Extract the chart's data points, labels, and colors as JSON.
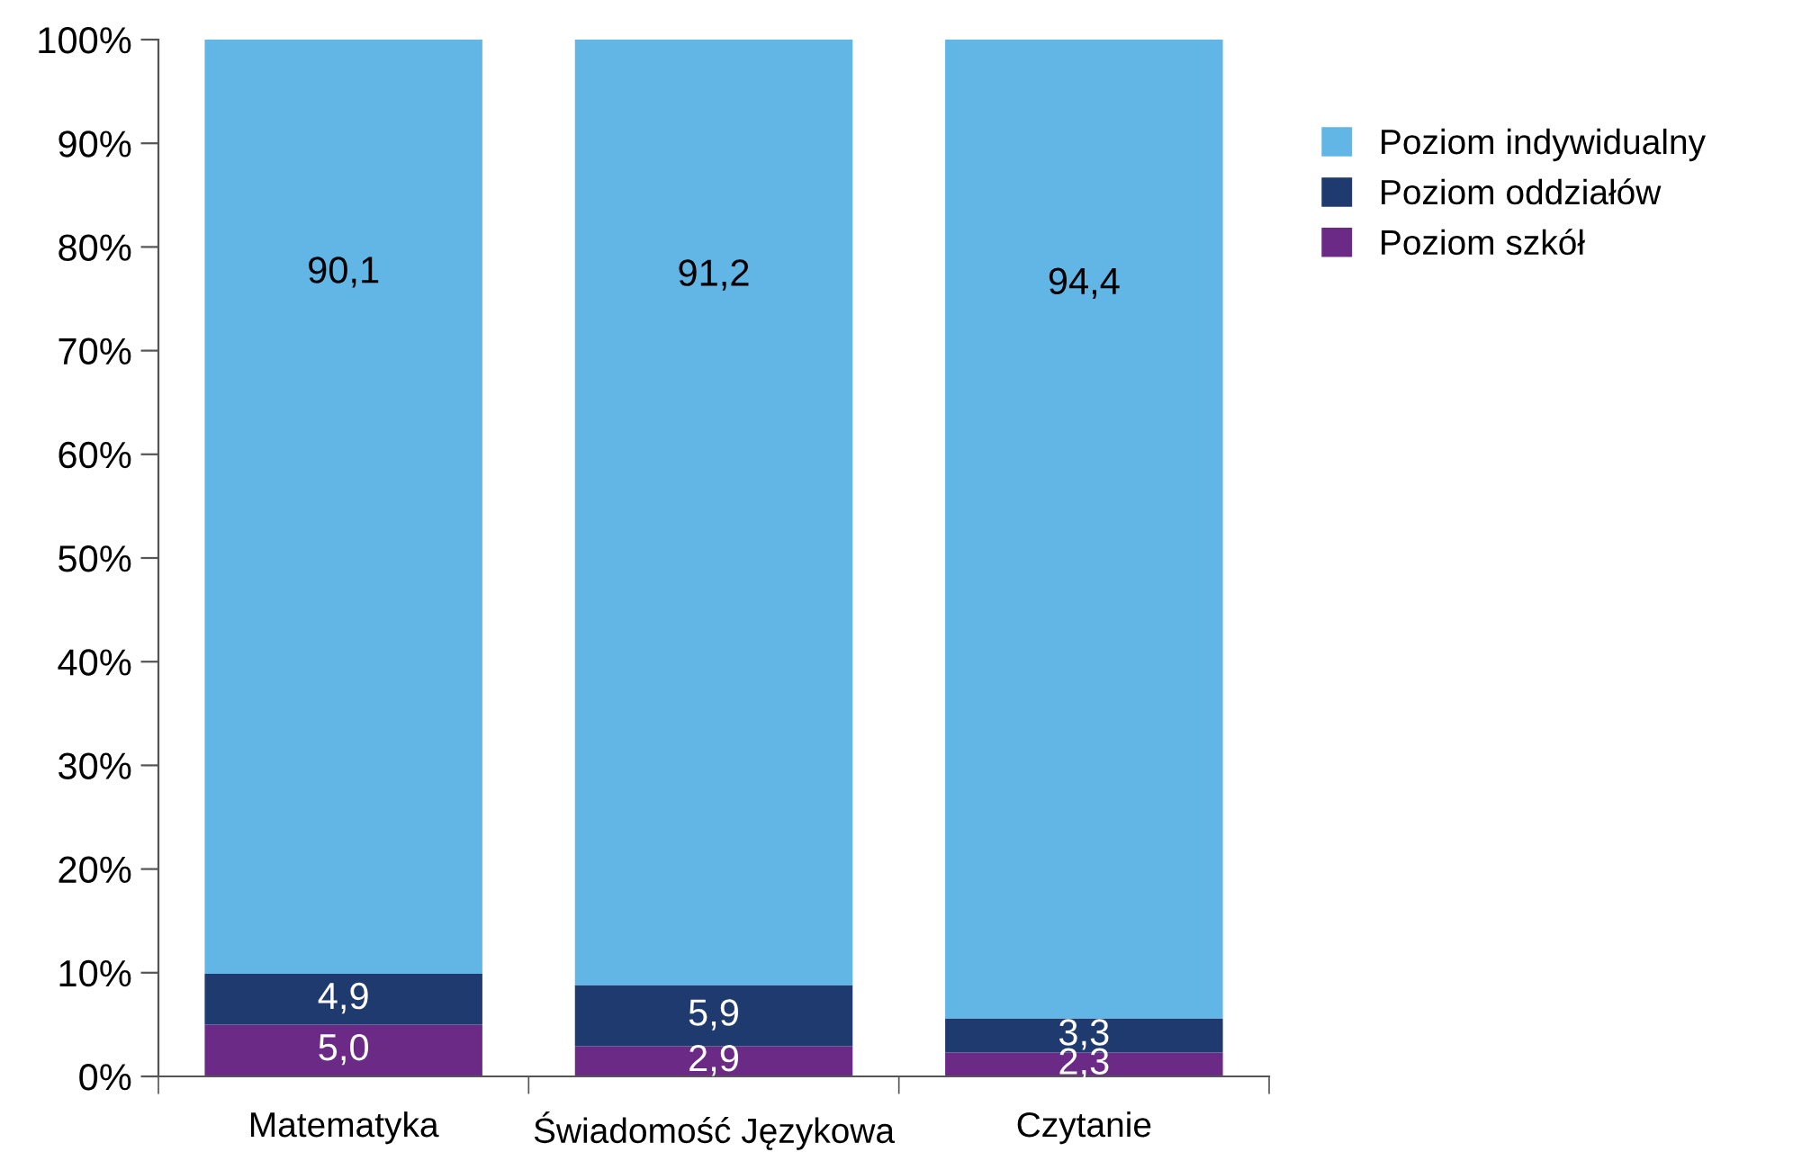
{
  "chart_data": {
    "type": "bar",
    "stacked": true,
    "categories": [
      "Matematyka",
      "Świadomość Językowa",
      "Czytanie"
    ],
    "series": [
      {
        "name": "Poziom szkół",
        "color": "#6b2a86",
        "values": [
          5.0,
          2.9,
          2.3
        ],
        "value_labels": [
          "5,0",
          "2,9",
          "2,3"
        ]
      },
      {
        "name": "Poziom oddziałów",
        "color": "#1f3a6e",
        "values": [
          4.9,
          5.9,
          3.3
        ],
        "value_labels": [
          "4,9",
          "5,9",
          "3,3"
        ]
      },
      {
        "name": "Poziom indywidualny",
        "color": "#62b6e6",
        "values": [
          90.1,
          91.2,
          94.4
        ],
        "value_labels": [
          "90,1",
          "91,2",
          "94,4"
        ]
      }
    ],
    "ylim": [
      0,
      100
    ],
    "yticks": [
      {
        "value": 0,
        "label": "0%"
      },
      {
        "value": 10,
        "label": "10%"
      },
      {
        "value": 20,
        "label": "20%"
      },
      {
        "value": 30,
        "label": "30%"
      },
      {
        "value": 40,
        "label": "40%"
      },
      {
        "value": 50,
        "label": "50%"
      },
      {
        "value": 60,
        "label": "60%"
      },
      {
        "value": 70,
        "label": "70%"
      },
      {
        "value": 80,
        "label": "80%"
      },
      {
        "value": 90,
        "label": "90%"
      },
      {
        "value": 100,
        "label": "100%"
      }
    ],
    "grid": false,
    "legend": "right"
  }
}
